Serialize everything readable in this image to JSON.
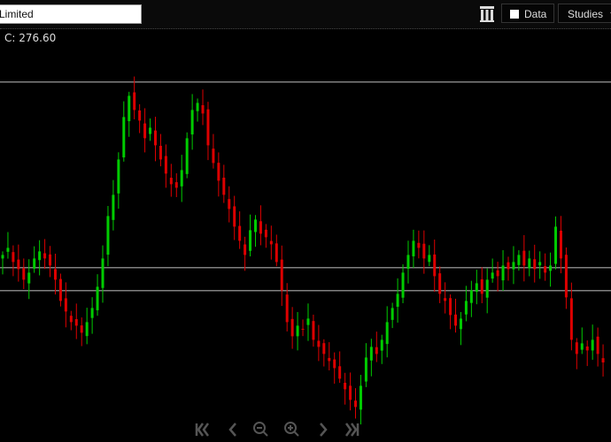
{
  "search": {
    "value": "Limited"
  },
  "toolbar": {
    "delete_icon": "trash-columns-icon",
    "data_label": "Data",
    "studies_label": "Studies"
  },
  "ohlc_readout": "C: 276.60",
  "colors": {
    "up": "#00cc00",
    "down": "#dd0000",
    "level_line": "#aaaaaa",
    "background": "#000000"
  },
  "chart_data": {
    "type": "candlestick",
    "ylim": [
      261.6,
      364.1
    ],
    "grid": false,
    "level_lines": [
      355.9,
      303.4,
      296.9
    ],
    "close": [
      307,
      309,
      305,
      303,
      300,
      302,
      306,
      308,
      306,
      304,
      300,
      294,
      291,
      288,
      287,
      285,
      288,
      292,
      298,
      306,
      318,
      324,
      334,
      346,
      352,
      348,
      345,
      340,
      343,
      338,
      334,
      330,
      327,
      326,
      331,
      340,
      348,
      350,
      347,
      338,
      333,
      328,
      324,
      320,
      315,
      311,
      307,
      314,
      317,
      313,
      312,
      310,
      305,
      297,
      288,
      284,
      287,
      286,
      289,
      283,
      281,
      279,
      277,
      275,
      272,
      269,
      266,
      264,
      270,
      278,
      281,
      279,
      283,
      288,
      292,
      296,
      302,
      307,
      311,
      309,
      306,
      307,
      301,
      296,
      294,
      290,
      287,
      289,
      294,
      297,
      299,
      296,
      300,
      302,
      301,
      304,
      303,
      305,
      307,
      304,
      306,
      303,
      305,
      302,
      304,
      315,
      306,
      295,
      283,
      279,
      282,
      280,
      283,
      279,
      276.6
    ]
  },
  "nav": [
    "first-page-icon",
    "prev-icon",
    "zoom-out-icon",
    "zoom-in-icon",
    "next-icon",
    "last-page-icon"
  ]
}
